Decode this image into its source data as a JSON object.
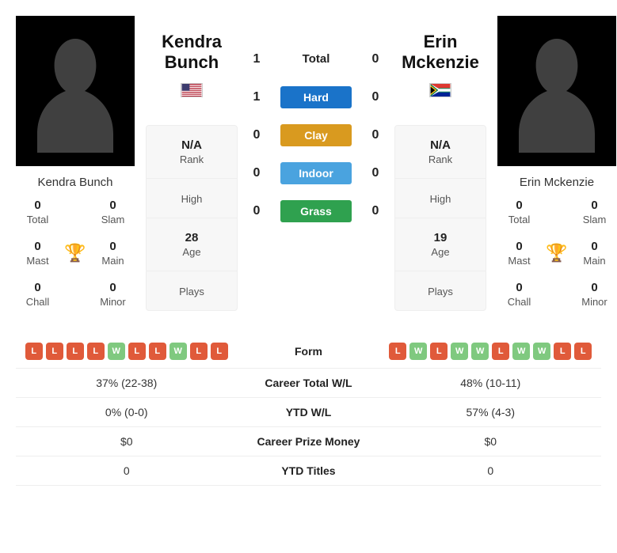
{
  "colors": {
    "hard": "#1a73c9",
    "clay": "#d99a1f",
    "indoor": "#4aa3df",
    "grass": "#2fa14f",
    "loss": "#e05a3a",
    "win": "#7fc97f",
    "trophy": "#4a7fc9",
    "silhouette": "#404040"
  },
  "p1": {
    "name": "Kendra Bunch",
    "flag": "us",
    "rank": "N/A",
    "high": "",
    "age": "28",
    "plays": "",
    "titles": {
      "total": "0",
      "slam": "0",
      "mast": "0",
      "main": "0",
      "chall": "0",
      "minor": "0"
    },
    "form": [
      "L",
      "L",
      "L",
      "L",
      "W",
      "L",
      "L",
      "W",
      "L",
      "L"
    ],
    "career_wl": "37% (22-38)",
    "ytd_wl": "0% (0-0)",
    "prize": "$0",
    "ytd_titles": "0"
  },
  "p2": {
    "name": "Erin Mckenzie",
    "flag": "za",
    "rank": "N/A",
    "high": "",
    "age": "19",
    "plays": "",
    "titles": {
      "total": "0",
      "slam": "0",
      "mast": "0",
      "main": "0",
      "chall": "0",
      "minor": "0"
    },
    "form": [
      "L",
      "W",
      "L",
      "W",
      "W",
      "L",
      "W",
      "W",
      "L",
      "L"
    ],
    "career_wl": "48% (10-11)",
    "ytd_wl": "57% (4-3)",
    "prize": "$0",
    "ytd_titles": "0"
  },
  "h2h": {
    "total": {
      "label": "Total",
      "p1": "1",
      "p2": "0"
    },
    "surfaces": [
      {
        "label": "Hard",
        "color_key": "hard",
        "p1": "1",
        "p2": "0"
      },
      {
        "label": "Clay",
        "color_key": "clay",
        "p1": "0",
        "p2": "0"
      },
      {
        "label": "Indoor",
        "color_key": "indoor",
        "p1": "0",
        "p2": "0"
      },
      {
        "label": "Grass",
        "color_key": "grass",
        "p1": "0",
        "p2": "0"
      }
    ]
  },
  "labels": {
    "rank": "Rank",
    "high": "High",
    "age": "Age",
    "plays": "Plays",
    "total": "Total",
    "slam": "Slam",
    "mast": "Mast",
    "main": "Main",
    "chall": "Chall",
    "minor": "Minor",
    "form": "Form",
    "career_wl": "Career Total W/L",
    "ytd_wl": "YTD W/L",
    "prize": "Career Prize Money",
    "ytd_titles": "YTD Titles"
  }
}
